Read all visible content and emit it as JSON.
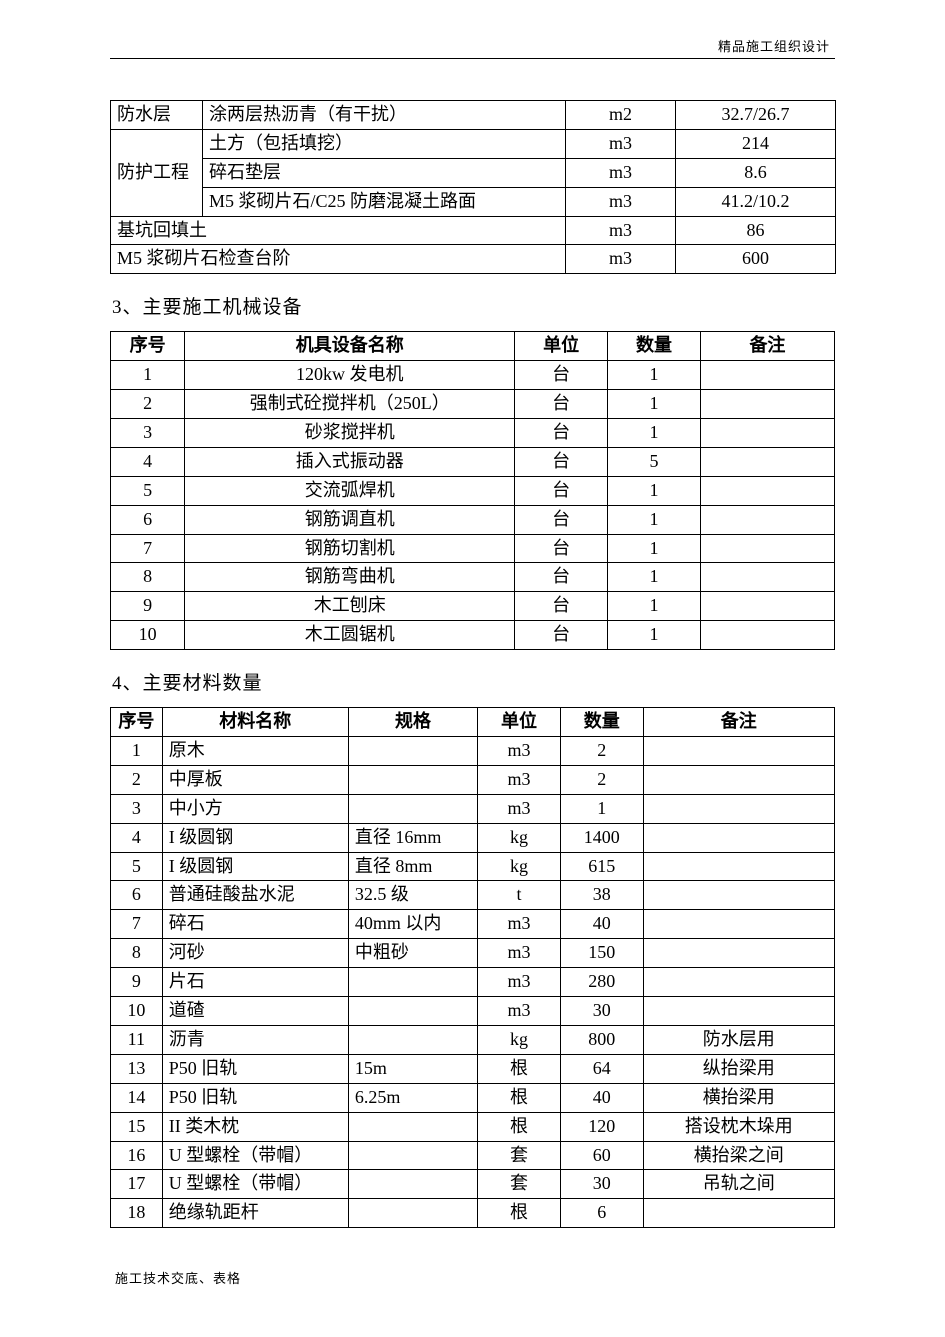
{
  "header_right": "精品施工组织设计",
  "footer_left": "施工技术交底、表格",
  "table1": {
    "rows": [
      {
        "c1": "防水层",
        "c1_rowspan": 1,
        "c2": "涂两层热沥青（有干扰）",
        "c3": "m2",
        "c4": "32.7/26.7"
      },
      {
        "c1": "防护工程",
        "c1_rowspan": 3,
        "c2": "土方（包括填挖）",
        "c3": "m3",
        "c4": "214"
      },
      {
        "c2": "碎石垫层",
        "c3": "m3",
        "c4": "8.6"
      },
      {
        "c2": "M5 浆砌片石/C25 防磨混凝土路面",
        "c3": "m3",
        "c4": "41.2/10.2"
      },
      {
        "c12": "基坑回填土",
        "c12_colspan": 2,
        "c3": "m3",
        "c4": "86"
      },
      {
        "c12": "M5 浆砌片石检查台阶",
        "c12_colspan": 2,
        "c3": "m3",
        "c4": "600"
      }
    ]
  },
  "heading2": "3、主要施工机械设备",
  "table2": {
    "headers": [
      "序号",
      "机具设备名称",
      "单位",
      "数量",
      "备注"
    ],
    "rows": [
      [
        "1",
        "120kw 发电机",
        "台",
        "1",
        ""
      ],
      [
        "2",
        "强制式砼搅拌机（250L）",
        "台",
        "1",
        ""
      ],
      [
        "3",
        "砂浆搅拌机",
        "台",
        "1",
        ""
      ],
      [
        "4",
        "插入式振动器",
        "台",
        "5",
        ""
      ],
      [
        "5",
        "交流弧焊机",
        "台",
        "1",
        ""
      ],
      [
        "6",
        "钢筋调直机",
        "台",
        "1",
        ""
      ],
      [
        "7",
        "钢筋切割机",
        "台",
        "1",
        ""
      ],
      [
        "8",
        "钢筋弯曲机",
        "台",
        "1",
        ""
      ],
      [
        "9",
        "木工刨床",
        "台",
        "1",
        ""
      ],
      [
        "10",
        "木工圆锯机",
        "台",
        "1",
        ""
      ]
    ]
  },
  "heading3": "4、主要材料数量",
  "table3": {
    "headers": [
      "序号",
      "材料名称",
      "规格",
      "单位",
      "数量",
      "备注"
    ],
    "rows": [
      [
        "1",
        "原木",
        "",
        "m3",
        "2",
        ""
      ],
      [
        "2",
        "中厚板",
        "",
        "m3",
        "2",
        ""
      ],
      [
        "3",
        "中小方",
        "",
        "m3",
        "1",
        ""
      ],
      [
        "4",
        "I 级圆钢",
        "直径 16mm",
        "kg",
        "1400",
        ""
      ],
      [
        "5",
        "I 级圆钢",
        "直径 8mm",
        "kg",
        "615",
        ""
      ],
      [
        "6",
        "普通硅酸盐水泥",
        "32.5 级",
        "t",
        "38",
        ""
      ],
      [
        "7",
        "碎石",
        "40mm 以内",
        "m3",
        "40",
        ""
      ],
      [
        "8",
        "河砂",
        "中粗砂",
        "m3",
        "150",
        ""
      ],
      [
        "9",
        "片石",
        "",
        "m3",
        "280",
        ""
      ],
      [
        "10",
        "道碴",
        "",
        "m3",
        "30",
        ""
      ],
      [
        "11",
        "沥青",
        "",
        "kg",
        "800",
        "防水层用"
      ],
      [
        "13",
        "P50 旧轨",
        "15m",
        "根",
        "64",
        "纵抬梁用"
      ],
      [
        "14",
        "P50 旧轨",
        "6.25m",
        "根",
        "40",
        "横抬梁用"
      ],
      [
        "15",
        "II 类木枕",
        "",
        "根",
        "120",
        "搭设枕木垛用"
      ],
      [
        "16",
        "U 型螺栓（带帽）",
        "",
        "套",
        "60",
        "横抬梁之间"
      ],
      [
        "17",
        "U 型螺栓（带帽）",
        "",
        "套",
        "30",
        "吊轨之间"
      ],
      [
        "18",
        "绝缘轨距杆",
        "",
        "根",
        "6",
        ""
      ]
    ]
  }
}
